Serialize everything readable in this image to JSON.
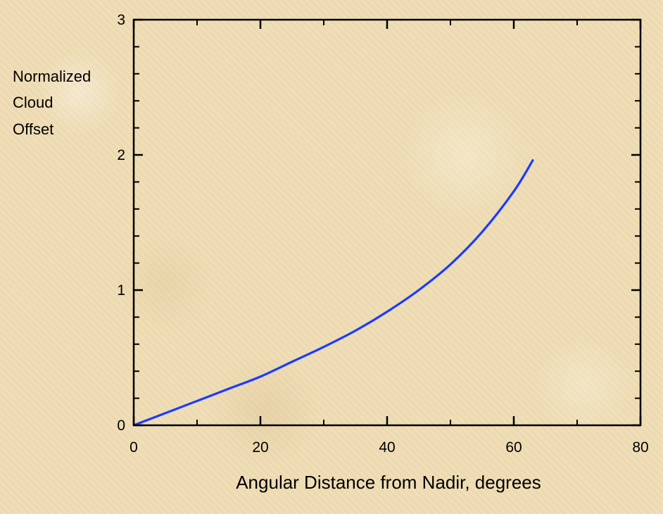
{
  "chart_data": {
    "type": "line",
    "title": "",
    "xlabel": "Angular Distance from Nadir, degrees",
    "ylabel": [
      "Normalized",
      "Cloud",
      "Offset"
    ],
    "xlim": [
      0,
      80
    ],
    "ylim": [
      0,
      3
    ],
    "x_ticks": [
      0,
      20,
      40,
      60,
      80
    ],
    "y_ticks": [
      0,
      1,
      2,
      3
    ],
    "x_minor_step": 10,
    "y_minor_step": 0.2,
    "grid": false,
    "series": [
      {
        "color": "#1a3cff",
        "x": [
          0,
          5,
          10,
          15,
          20,
          25,
          30,
          35,
          40,
          45,
          50,
          55,
          60,
          63
        ],
        "y": [
          0,
          0.09,
          0.18,
          0.27,
          0.36,
          0.47,
          0.58,
          0.7,
          0.84,
          1.0,
          1.19,
          1.43,
          1.73,
          1.96
        ]
      }
    ]
  }
}
